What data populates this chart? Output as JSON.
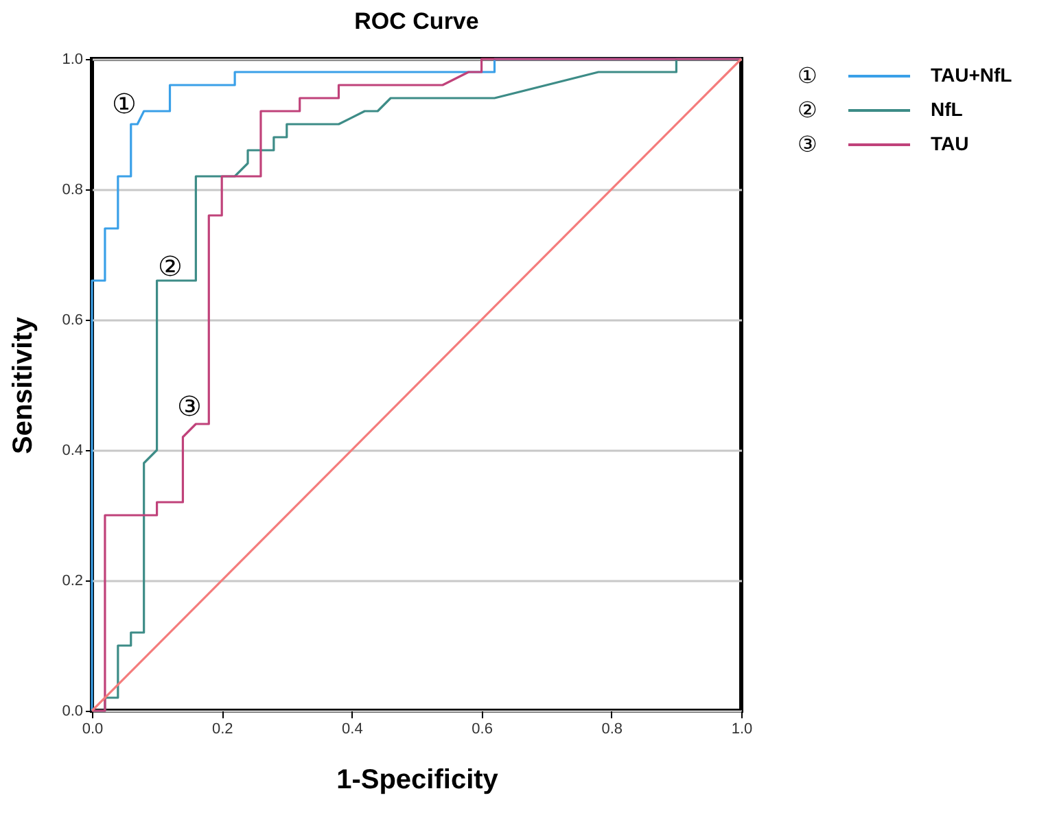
{
  "chart_data": {
    "type": "line",
    "title": "ROC Curve",
    "xlabel": "1-Specificity",
    "ylabel": "Sensitivity",
    "xlim": [
      0,
      1
    ],
    "ylim": [
      0,
      1
    ],
    "xticks": [
      {
        "value": 0,
        "label": "0.0"
      },
      {
        "value": 0.2,
        "label": "0.2"
      },
      {
        "value": 0.4,
        "label": "0.4"
      },
      {
        "value": 0.6,
        "label": "0.6"
      },
      {
        "value": 0.8,
        "label": "0.8"
      },
      {
        "value": 1,
        "label": "1.0"
      }
    ],
    "yticks": [
      {
        "value": 0,
        "label": "0.0"
      },
      {
        "value": 0.2,
        "label": "0.2"
      },
      {
        "value": 0.4,
        "label": "0.4"
      },
      {
        "value": 0.6,
        "label": "0.6"
      },
      {
        "value": 0.8,
        "label": "0.8"
      },
      {
        "value": 1,
        "label": "1.0"
      }
    ],
    "grid": "y",
    "legend": "right",
    "marker": "none",
    "line_style": "solid",
    "series": [
      {
        "name": "TAU+NfL",
        "color": "#3aa0e8",
        "x": [
          0,
          0,
          0.02,
          0.02,
          0.04,
          0.04,
          0.06,
          0.06,
          0.07,
          0.08,
          0.12,
          0.12,
          0.22,
          0.22,
          0.62,
          0.62,
          1
        ],
        "values": [
          0,
          0.66,
          0.66,
          0.74,
          0.74,
          0.82,
          0.82,
          0.9,
          0.9,
          0.92,
          0.92,
          0.96,
          0.96,
          0.98,
          0.98,
          1,
          1
        ]
      },
      {
        "name": "NfL",
        "color": "#3d8c87",
        "x": [
          0,
          0.02,
          0.02,
          0.04,
          0.04,
          0.06,
          0.06,
          0.08,
          0.08,
          0.1,
          0.1,
          0.16,
          0.16,
          0.22,
          0.24,
          0.24,
          0.28,
          0.28,
          0.3,
          0.3,
          0.38,
          0.42,
          0.44,
          0.46,
          0.62,
          0.78,
          0.9,
          0.9,
          1
        ],
        "values": [
          0,
          0,
          0.02,
          0.02,
          0.1,
          0.1,
          0.12,
          0.12,
          0.38,
          0.4,
          0.66,
          0.66,
          0.82,
          0.82,
          0.84,
          0.86,
          0.86,
          0.88,
          0.88,
          0.9,
          0.9,
          0.92,
          0.92,
          0.94,
          0.94,
          0.98,
          0.98,
          1,
          1
        ]
      },
      {
        "name": "TAU",
        "color": "#c0427a",
        "x": [
          0,
          0.02,
          0.02,
          0.1,
          0.1,
          0.14,
          0.14,
          0.16,
          0.18,
          0.18,
          0.2,
          0.2,
          0.26,
          0.26,
          0.32,
          0.32,
          0.38,
          0.38,
          0.54,
          0.58,
          0.6,
          0.6,
          1
        ],
        "values": [
          0,
          0,
          0.3,
          0.3,
          0.32,
          0.32,
          0.42,
          0.44,
          0.44,
          0.76,
          0.76,
          0.82,
          0.82,
          0.92,
          0.92,
          0.94,
          0.94,
          0.96,
          0.96,
          0.98,
          0.98,
          1,
          1
        ]
      },
      {
        "color": "#f47c7c",
        "x": [
          0,
          1
        ],
        "values": [
          0,
          1
        ]
      }
    ],
    "annotations": [
      "①",
      "②",
      "③"
    ]
  }
}
